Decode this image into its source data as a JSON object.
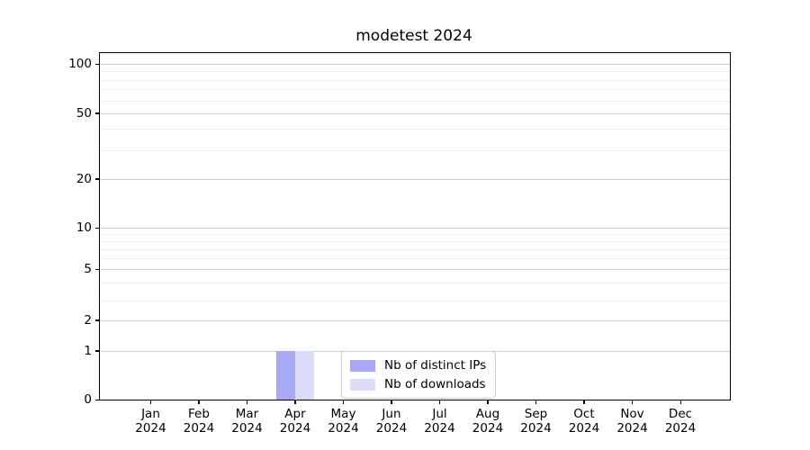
{
  "chart_data": {
    "type": "bar",
    "title": "modetest 2024",
    "xlabel": "",
    "ylabel": "",
    "yscale": "symlog",
    "grid": true,
    "legend_position": "lower center",
    "y_major_ticks": [
      100,
      50,
      20,
      10,
      5,
      2,
      1,
      0
    ],
    "y_minor_gridline_values": [
      90,
      80,
      70,
      60,
      40,
      30,
      9,
      8,
      7,
      6,
      4,
      3
    ],
    "categories": [
      "Jan 2024",
      "Feb 2024",
      "Mar 2024",
      "Apr 2024",
      "May 2024",
      "Jun 2024",
      "Jul 2024",
      "Aug 2024",
      "Sep 2024",
      "Oct 2024",
      "Nov 2024",
      "Dec 2024"
    ],
    "x_months": [
      "Jan",
      "Feb",
      "Mar",
      "Apr",
      "May",
      "Jun",
      "Jul",
      "Aug",
      "Sep",
      "Oct",
      "Nov",
      "Dec"
    ],
    "x_year": "2024",
    "series": [
      {
        "name": "Nb of distinct IPs",
        "color": "#a8a8f4",
        "values": [
          0,
          0,
          0,
          1,
          0,
          0,
          0,
          0,
          0,
          0,
          0,
          0
        ]
      },
      {
        "name": "Nb of downloads",
        "color": "#dbdbfa",
        "values": [
          0,
          0,
          0,
          1,
          0,
          0,
          0,
          0,
          0,
          0,
          0,
          0
        ]
      }
    ],
    "colors": {
      "major_grid": "#cccccc",
      "minor_grid": "#ececec",
      "spine": "#000000",
      "background": "#ffffff"
    },
    "layout": {
      "y_major": [
        {
          "v": 100,
          "f": 0.0312
        },
        {
          "v": 50,
          "f": 0.174
        },
        {
          "v": 20,
          "f": 0.3636
        },
        {
          "v": 10,
          "f": 0.5039
        },
        {
          "v": 5,
          "f": 0.6234
        },
        {
          "v": 2,
          "f": 0.7714
        },
        {
          "v": 1,
          "f": 0.8597
        },
        {
          "v": 0,
          "f": 1.0
        }
      ],
      "y_minor": [
        {
          "v": 90,
          "f": 0.0519
        },
        {
          "v": 80,
          "f": 0.0779
        },
        {
          "v": 70,
          "f": 0.1039
        },
        {
          "v": 60,
          "f": 0.1377
        },
        {
          "v": 40,
          "f": 0.2182
        },
        {
          "v": 30,
          "f": 0.2805
        },
        {
          "v": 9,
          "f": 0.5221
        },
        {
          "v": 8,
          "f": 0.5429
        },
        {
          "v": 7,
          "f": 0.5662
        },
        {
          "v": 6,
          "f": 0.5922
        },
        {
          "v": 4,
          "f": 0.6623
        },
        {
          "v": 3,
          "f": 0.7143
        }
      ],
      "x_center_start_frac": 0.0807,
      "x_center_step_frac": 0.07643,
      "bar_width_frac": 0.03
    }
  }
}
